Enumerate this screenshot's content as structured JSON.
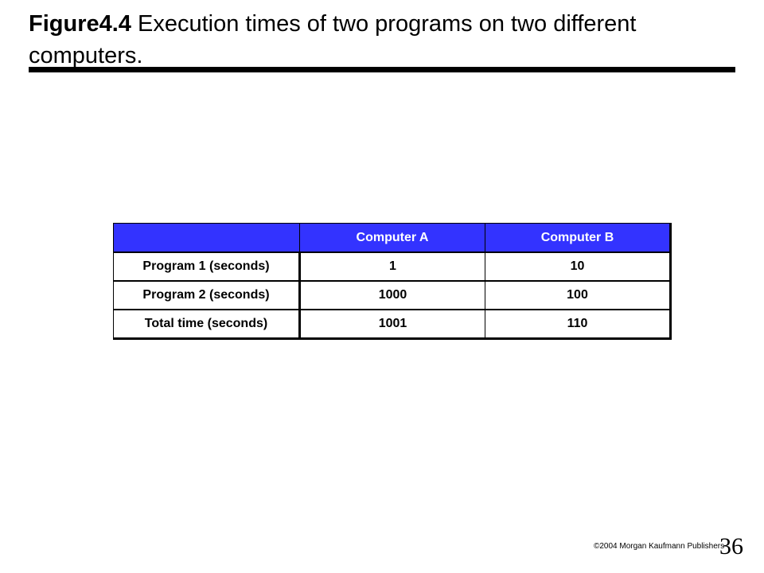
{
  "slide": {
    "figure_label": "Figure4.4",
    "title_text": " Execution times of two programs on two different computers."
  },
  "table": {
    "header": [
      "",
      "Computer A",
      "Computer B"
    ],
    "rows": [
      [
        "Program 1 (seconds)",
        "1",
        "10"
      ],
      [
        "Program 2 (seconds)",
        "1000",
        "100"
      ],
      [
        "Total time (seconds)",
        "1001",
        "110"
      ]
    ],
    "header_color": "#3333ff"
  },
  "footer": {
    "copyright": "©2004   Morgan Kaufmann Publishers",
    "page_number": "36"
  }
}
